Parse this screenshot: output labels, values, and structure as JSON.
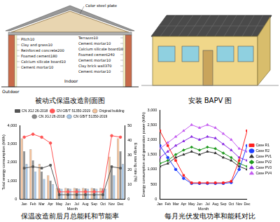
{
  "captions": [
    "被动式保温改造剖面图",
    "安装 BAPV 图",
    "保温改造前后月总能耗和节能率",
    "每月光伏发电功率和能耗对比"
  ],
  "diagrams": {
    "section": {
      "roof_label": "Color steel plate",
      "outdoor": "Outdoor",
      "indoor": "Indoor",
      "roof_layers": [
        "Pitch10",
        "Clay and grass10",
        "Reinforced concrete200",
        "Foamed cement180",
        "Calcium silicate board10",
        "Cement mortar10"
      ],
      "wall_layers": [
        "Terrazzo10",
        "Cement mortar10",
        "Calcium silicate board10",
        "Foamed cement240",
        "Cement mortar10",
        "Clay brick wall370",
        "Cement mortar10"
      ]
    }
  },
  "chart_data": [
    {
      "type": "bar",
      "x_label": "Month",
      "y_label": "Total energy consumption (kWh)",
      "y2_label": "Energy saving rate (%)",
      "categories": [
        "Jan",
        "Feb",
        "Mar",
        "Apr",
        "May",
        "Jun",
        "Jul",
        "Aug",
        "Sep",
        "Oct",
        "Nov",
        "Dec"
      ],
      "series": [
        {
          "name": "Original building",
          "color": "#f4c29b",
          "values": [
            3300,
            2700,
            1900,
            1300,
            600,
            600,
            600,
            600,
            600,
            600,
            2300,
            3300
          ]
        },
        {
          "name": "CN JGJ 26-2018",
          "color": "#8c8c8c",
          "values": [
            2600,
            2100,
            1500,
            1000,
            580,
            580,
            580,
            580,
            580,
            580,
            1800,
            2600
          ]
        },
        {
          "name": "CN GB/T 51350-2019",
          "color": "#a9c8e8",
          "values": [
            1900,
            1500,
            1100,
            800,
            570,
            570,
            570,
            570,
            570,
            570,
            1300,
            1900
          ]
        },
        {
          "name": "CN JGJ 26-2018",
          "type": "line",
          "axis": "y2",
          "color": "#555555",
          "marker": "square",
          "values": [
            21,
            22,
            21,
            23,
            3,
            3,
            3,
            3,
            3,
            3,
            22,
            21
          ]
        },
        {
          "name": "CN GB/T 51350-2019",
          "type": "line",
          "axis": "y2",
          "color": "#ff5555",
          "marker": "circle",
          "values": [
            42,
            44,
            42,
            38,
            5,
            5,
            5,
            5,
            5,
            5,
            43,
            42
          ]
        }
      ],
      "ylim": [
        0,
        4000
      ],
      "yticks": [
        0,
        1000,
        2000,
        3000,
        4000
      ],
      "y2lim": [
        0,
        50
      ],
      "y2ticks": [
        0,
        10,
        20,
        30,
        40,
        50
      ],
      "grid": false,
      "legend": "top"
    },
    {
      "type": "line",
      "x_label": "Month",
      "y_label": "Energy consumption and generation power (kWh)",
      "categories": [
        "Jan",
        "Feb",
        "Mar",
        "Apr",
        "May",
        "Jun",
        "Jul",
        "Aug",
        "Sep",
        "Oct",
        "Nov",
        "Dec"
      ],
      "series": [
        {
          "name": "Case R1",
          "color": "#ff2020",
          "marker": "square",
          "values": [
            2300,
            1800,
            1300,
            800,
            550,
            550,
            550,
            550,
            550,
            600,
            1300,
            2300
          ]
        },
        {
          "name": "Case R2",
          "color": "#1f3fff",
          "marker": "circle",
          "values": [
            1800,
            1400,
            1000,
            700,
            530,
            530,
            530,
            530,
            530,
            560,
            1000,
            1800
          ]
        },
        {
          "name": "Case PV1",
          "color": "#333333",
          "marker": "triangle",
          "values": [
            1100,
            1200,
            1400,
            1500,
            1600,
            1500,
            1600,
            1550,
            1400,
            1300,
            1100,
            1000
          ]
        },
        {
          "name": "Case PV2",
          "color": "#1f9a1f",
          "marker": "diamond",
          "values": [
            1200,
            1300,
            1500,
            1650,
            1750,
            1650,
            1750,
            1700,
            1550,
            1400,
            1200,
            1100
          ]
        },
        {
          "name": "Case PV3",
          "color": "#8a2be2",
          "marker": "triangle",
          "values": [
            1400,
            1600,
            1800,
            1950,
            2100,
            2000,
            2100,
            2050,
            1850,
            1650,
            1400,
            1300
          ]
        },
        {
          "name": "Case PV4",
          "color": "#c45cf0",
          "marker": "triangle",
          "values": [
            1700,
            1900,
            2100,
            2300,
            2500,
            2400,
            2500,
            2400,
            2200,
            2000,
            1700,
            1600
          ]
        }
      ],
      "ylim": [
        0,
        3000
      ],
      "yticks": [
        0,
        500,
        1000,
        1500,
        2000,
        2500,
        3000
      ],
      "grid": false,
      "legend": "right"
    }
  ]
}
